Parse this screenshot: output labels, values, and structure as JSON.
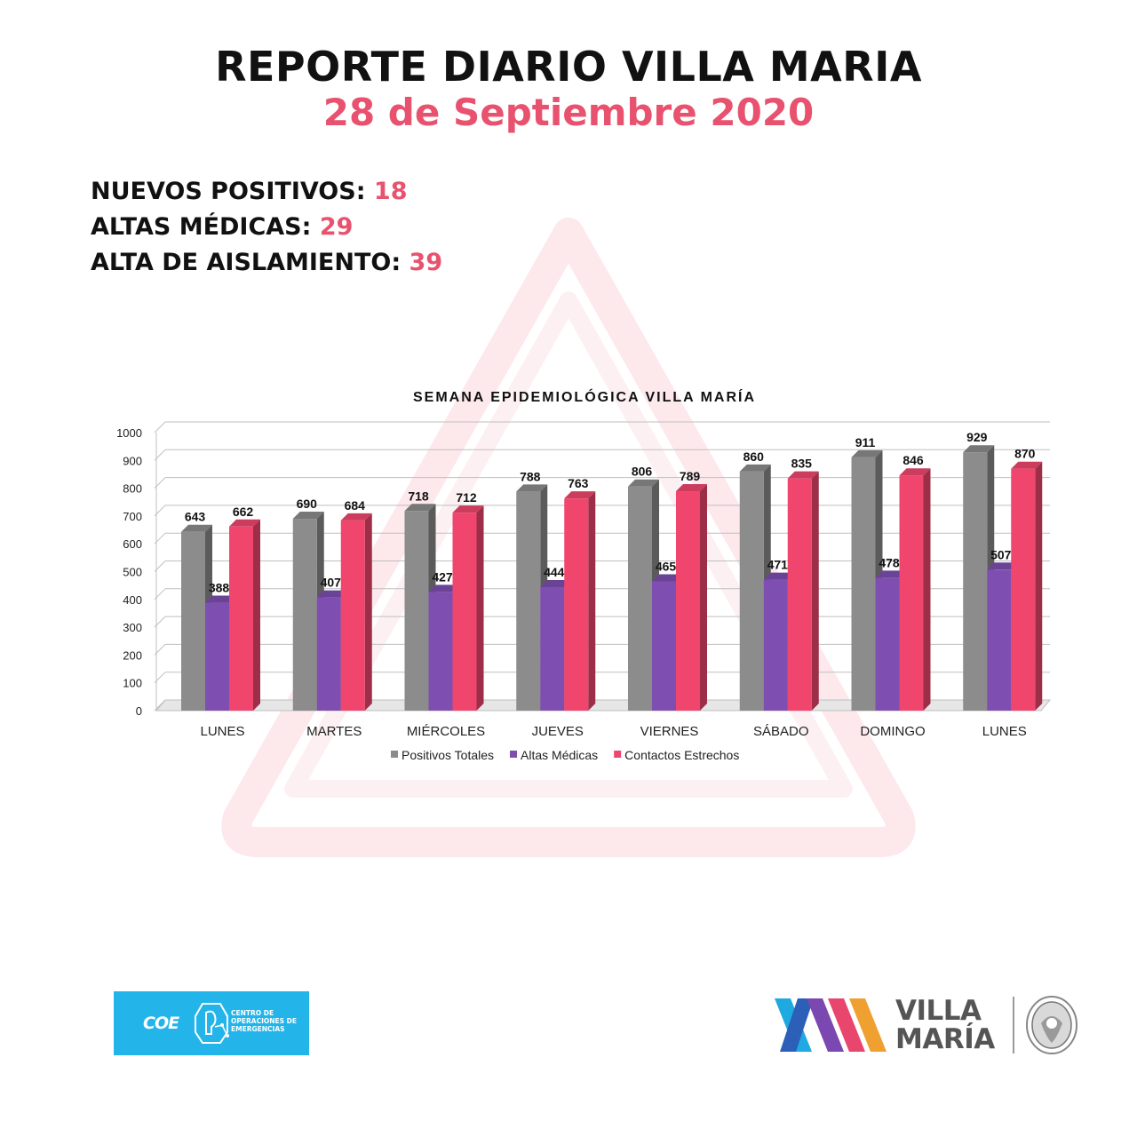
{
  "header": {
    "title": "REPORTE DIARIO VILLA MARIA",
    "date": "28 de Septiembre 2020"
  },
  "stats": [
    {
      "label": "NUEVOS POSITIVOS:",
      "value": "18"
    },
    {
      "label": "ALTAS MÉDICAS:",
      "value": "29"
    },
    {
      "label": "ALTA DE AISLAMIENTO:",
      "value": "39"
    }
  ],
  "chart_data": {
    "type": "bar",
    "title": "SEMANA EPIDEMIOLÓGICA VILLA MARÍA",
    "xlabel": "",
    "ylabel": "",
    "categories": [
      "LUNES",
      "MARTES",
      "MIÉRCOLES",
      "JUEVES",
      "VIERNES",
      "SÁBADO",
      "DOMINGO",
      "LUNES"
    ],
    "ylim": [
      0,
      1000
    ],
    "yticks": [
      0,
      100,
      200,
      300,
      400,
      500,
      600,
      700,
      800,
      900,
      1000
    ],
    "grid": true,
    "legend": "bottom",
    "series": [
      {
        "name": "Positivos Totales",
        "color": "#8c8c8c",
        "values": [
          643,
          690,
          718,
          788,
          806,
          860,
          911,
          929
        ]
      },
      {
        "name": "Altas Médicas",
        "color": "#7e4fb0",
        "values": [
          388,
          407,
          427,
          444,
          465,
          471,
          478,
          507
        ]
      },
      {
        "name": "Contactos Estrechos",
        "color": "#f0466d",
        "values": [
          662,
          684,
          712,
          763,
          789,
          835,
          846,
          870
        ]
      }
    ]
  },
  "footer": {
    "coe_logo": {
      "text": "COE",
      "subtitle": [
        "CENTRO DE",
        "OPERACIONES DE",
        "EMERGENCIAS"
      ]
    },
    "villa_maria_logo": {
      "line1": "VILLA",
      "line2": "MARÍA"
    }
  }
}
